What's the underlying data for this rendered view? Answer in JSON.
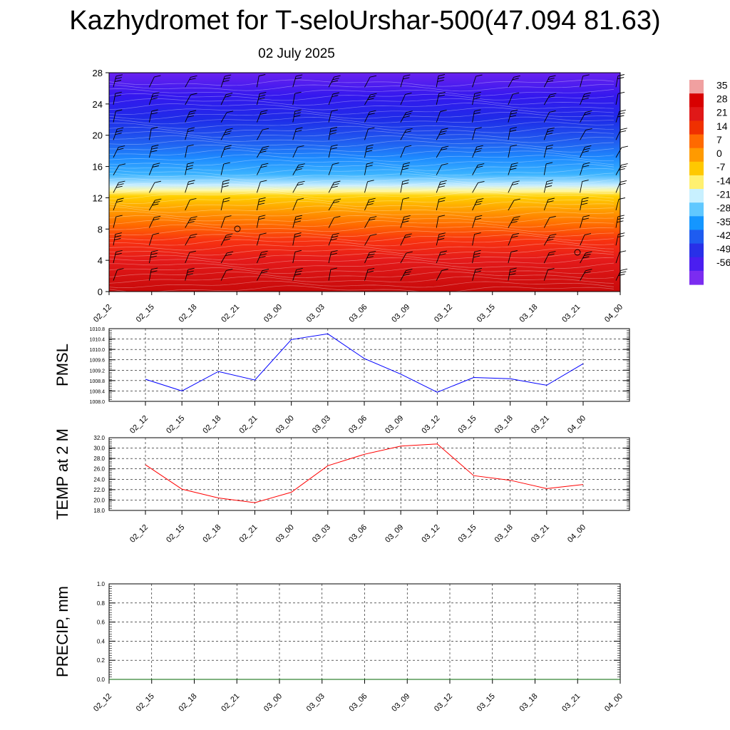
{
  "title": "Kazhydromet for T-seloUrshar-500(47.094 81.63)",
  "date": "02 July 2025",
  "chart_data": [
    {
      "type": "heatmap",
      "name": "temperature-wind cross section",
      "x_tick_labels": [
        "02_12",
        "02_15",
        "02_18",
        "02_21",
        "03_00",
        "03_03",
        "03_06",
        "03_09",
        "03_12",
        "03_15",
        "03_18",
        "03_21",
        "04_00"
      ],
      "y_ticks": [
        0,
        4,
        8,
        12,
        16,
        20,
        24,
        28
      ],
      "ylim": [
        0,
        28
      ],
      "colorbar": {
        "labels": [
          "35",
          "28",
          "21",
          "14",
          "7",
          "0",
          "-7",
          "-14",
          "-21",
          "-28",
          "-35",
          "-42",
          "-49",
          "-56"
        ],
        "colors": [
          "#f0a0a0",
          "#d80000",
          "#e01818",
          "#f03000",
          "#ff6a00",
          "#ff9a00",
          "#ffc800",
          "#fff070",
          "#c8f0ff",
          "#60c8ff",
          "#1496ff",
          "#1e5cf0",
          "#2830e8",
          "#4a1ef0",
          "#7b2cf0"
        ]
      },
      "bands": [
        {
          "y": 0,
          "color": "#c80a0a"
        },
        {
          "y": 4,
          "color": "#e41a1a"
        },
        {
          "y": 6.5,
          "color": "#f83210"
        },
        {
          "y": 8.5,
          "color": "#ff6a00"
        },
        {
          "y": 10.5,
          "color": "#ffa000"
        },
        {
          "y": 12.2,
          "color": "#ffd000"
        },
        {
          "y": 12.9,
          "color": "#fff8a0"
        },
        {
          "y": 13.6,
          "color": "#c8eeff"
        },
        {
          "y": 15,
          "color": "#3cb4ff"
        },
        {
          "y": 17,
          "color": "#1e8cff"
        },
        {
          "y": 19,
          "color": "#2060f0"
        },
        {
          "y": 22,
          "color": "#1e2ce8"
        },
        {
          "y": 25,
          "color": "#3418ee"
        },
        {
          "y": 28,
          "color": "#6a22f0"
        }
      ]
    },
    {
      "type": "line",
      "ylabel": "PMSL",
      "x": [
        "02_12",
        "02_15",
        "02_18",
        "02_21",
        "03_00",
        "03_03",
        "03_06",
        "03_09",
        "03_12",
        "03_15",
        "03_18",
        "03_21",
        "04_00"
      ],
      "series": [
        {
          "color": "#0000ff",
          "values": [
            1008.85,
            1008.4,
            1009.15,
            1008.82,
            1010.38,
            1010.6,
            1009.65,
            1009.05,
            1008.35,
            1008.92,
            1008.87,
            1008.62,
            1009.45
          ]
        }
      ],
      "ylim": [
        1008.0,
        1010.8
      ],
      "y_ticks": [
        "1008.0",
        "1008.4",
        "1008.8",
        "1009.2",
        "1009.6",
        "1010.0",
        "1010.4",
        "1010.8"
      ],
      "grid": true
    },
    {
      "type": "line",
      "ylabel": "TEMP at 2 M",
      "x": [
        "02_12",
        "02_15",
        "02_18",
        "02_21",
        "03_00",
        "03_03",
        "03_06",
        "03_09",
        "03_12",
        "03_15",
        "03_18",
        "03_21",
        "04_00"
      ],
      "series": [
        {
          "color": "#ff0000",
          "values": [
            26.8,
            22.1,
            20.4,
            19.5,
            21.5,
            26.6,
            28.8,
            30.4,
            30.8,
            24.7,
            23.8,
            22.2,
            23.0
          ]
        }
      ],
      "ylim": [
        18.0,
        32.0
      ],
      "y_ticks": [
        "18.0",
        "20.0",
        "22.0",
        "24.0",
        "26.0",
        "28.0",
        "30.0",
        "32.0"
      ],
      "grid": true
    },
    {
      "type": "line",
      "ylabel": "PRECIP, mm",
      "x": [
        "02_12",
        "02_15",
        "02_18",
        "02_21",
        "03_00",
        "03_03",
        "03_06",
        "03_09",
        "03_12",
        "03_15",
        "03_18",
        "03_21",
        "04_00"
      ],
      "series": [
        {
          "color": "#006400",
          "values": [
            0,
            0,
            0,
            0,
            0,
            0,
            0,
            0,
            0,
            0,
            0,
            0,
            0
          ]
        }
      ],
      "ylim": [
        0.0,
        1.0
      ],
      "y_ticks": [
        "0.0",
        "0.2",
        "0.4",
        "0.6",
        "0.8",
        "1.0"
      ],
      "grid": true
    }
  ]
}
